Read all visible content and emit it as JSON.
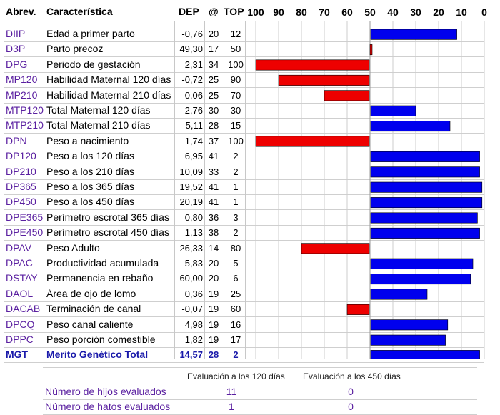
{
  "headers": {
    "abbr": "Abrev.",
    "name": "Característica",
    "dep": "DEP",
    "at": "@",
    "top": "TOP"
  },
  "rows": [
    {
      "abbr": "DIIP",
      "name": "Edad a primer parto",
      "dep": "-0,76",
      "at": "20",
      "top": "12"
    },
    {
      "abbr": "D3P",
      "name": "Parto precoz",
      "dep": "49,30",
      "at": "17",
      "top": "50"
    },
    {
      "abbr": "DPG",
      "name": "Periodo de gestación",
      "dep": "2,31",
      "at": "34",
      "top": "100"
    },
    {
      "abbr": "MP120",
      "name": "Habilidad Maternal 120 días",
      "dep": "-0,72",
      "at": "25",
      "top": "90"
    },
    {
      "abbr": "MP210",
      "name": "Habilidad Maternal 210 días",
      "dep": "0,06",
      "at": "25",
      "top": "70"
    },
    {
      "abbr": "MTP120",
      "name": "Total Maternal 120 días",
      "dep": "2,76",
      "at": "30",
      "top": "30"
    },
    {
      "abbr": "MTP210",
      "name": "Total Maternal 210 días",
      "dep": "5,11",
      "at": "28",
      "top": "15"
    },
    {
      "abbr": "DPN",
      "name": "Peso a nacimiento",
      "dep": "1,74",
      "at": "37",
      "top": "100"
    },
    {
      "abbr": "DP120",
      "name": "Peso a los 120 días",
      "dep": "6,95",
      "at": "41",
      "top": "2"
    },
    {
      "abbr": "DP210",
      "name": "Peso a los 210 días",
      "dep": "10,09",
      "at": "33",
      "top": "2"
    },
    {
      "abbr": "DP365",
      "name": "Peso a los 365 días",
      "dep": "19,52",
      "at": "41",
      "top": "1"
    },
    {
      "abbr": "DP450",
      "name": "Peso a los 450 días",
      "dep": "20,19",
      "at": "41",
      "top": "1"
    },
    {
      "abbr": "DPE365",
      "name": "Perímetro escrotal 365 días",
      "dep": "0,80",
      "at": "36",
      "top": "3"
    },
    {
      "abbr": "DPE450",
      "name": "Perímetro escrotal 450 días",
      "dep": "1,13",
      "at": "38",
      "top": "2"
    },
    {
      "abbr": "DPAV",
      "name": "Peso Adulto",
      "dep": "26,33",
      "at": "14",
      "top": "80"
    },
    {
      "abbr": "DPAC",
      "name": "Productividad acumulada",
      "dep": "5,83",
      "at": "20",
      "top": "5"
    },
    {
      "abbr": "DSTAY",
      "name": "Permanencia en rebaño",
      "dep": "60,00",
      "at": "20",
      "top": "6"
    },
    {
      "abbr": "DAOL",
      "name": "Área de ojo de lomo",
      "dep": "0,36",
      "at": "19",
      "top": "25"
    },
    {
      "abbr": "DACAB",
      "name": "Terminación de canal",
      "dep": "-0,07",
      "at": "19",
      "top": "60"
    },
    {
      "abbr": "DPCQ",
      "name": "Peso canal caliente",
      "dep": "4,98",
      "at": "19",
      "top": "16"
    },
    {
      "abbr": "DPPC",
      "name": "Peso porción comestible",
      "dep": "1,82",
      "at": "19",
      "top": "17"
    }
  ],
  "total": {
    "abbr": "MGT",
    "name": "Merito Genético Total",
    "dep": "14,57",
    "at": "28",
    "top": "2"
  },
  "chart_data": {
    "type": "bar",
    "orientation": "horizontal",
    "x_ticks": [
      "100",
      "90",
      "80",
      "70",
      "60",
      "50",
      "40",
      "30",
      "20",
      "10",
      "0"
    ],
    "xlim": [
      100,
      0
    ],
    "baseline": 50,
    "categories": [
      "DIIP",
      "D3P",
      "DPG",
      "MP120",
      "MP210",
      "MTP120",
      "MTP210",
      "DPN",
      "DP120",
      "DP210",
      "DP365",
      "DP450",
      "DPE365",
      "DPE450",
      "DPAV",
      "DPAC",
      "DSTAY",
      "DAOL",
      "DACAB",
      "DPCQ",
      "DPPC",
      "MGT"
    ],
    "values": [
      12,
      50,
      100,
      90,
      70,
      30,
      15,
      100,
      2,
      2,
      1,
      1,
      3,
      2,
      80,
      5,
      6,
      25,
      60,
      16,
      17,
      2
    ],
    "colors": {
      "above_average": "#0000ee",
      "below_average": "#ee0000"
    },
    "grid": true
  },
  "evaluation": {
    "col1": "Evaluación a los 120 días",
    "col2": "Evaluación a los 450 días",
    "rows": [
      {
        "label": "Número de hijos evaluados",
        "v1": "11",
        "v2": "0"
      },
      {
        "label": "Número de hatos evaluados",
        "v1": "1",
        "v2": "0"
      }
    ]
  }
}
